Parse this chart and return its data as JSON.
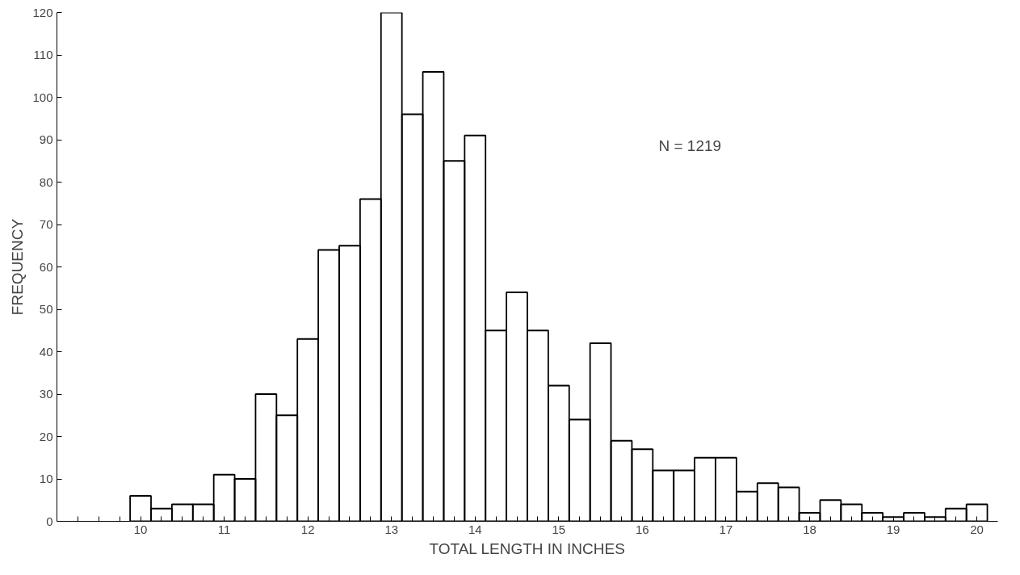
{
  "chart_data": {
    "type": "histogram",
    "xlabel": "TOTAL LENGTH IN INCHES",
    "ylabel": "FREQUENCY",
    "annotations": [
      "N = 1219"
    ],
    "bins": [
      9.875,
      10.125,
      10.375,
      10.625,
      10.875,
      11.125,
      11.375,
      11.625,
      11.875,
      12.125,
      12.375,
      12.625,
      12.875,
      13.125,
      13.375,
      13.625,
      13.875,
      14.125,
      14.375,
      14.625,
      14.875,
      15.125,
      15.375,
      15.625,
      15.875,
      16.125,
      16.375,
      16.625,
      16.875,
      17.125,
      17.375,
      17.625,
      17.875,
      18.125,
      18.375,
      18.625,
      18.875,
      19.125,
      19.375,
      19.625,
      19.875,
      20.125
    ],
    "values": [
      6,
      3,
      4,
      4,
      11,
      10,
      30,
      25,
      43,
      64,
      65,
      76,
      120,
      96,
      106,
      85,
      91,
      45,
      54,
      45,
      32,
      24,
      42,
      19,
      17,
      12,
      12,
      15,
      15,
      7,
      9,
      8,
      2,
      5,
      4,
      2,
      1,
      2,
      1,
      3,
      4
    ],
    "color": "#000000",
    "xlim": [
      9.0,
      20.25
    ],
    "xticks": [
      {
        "value": 9.25,
        "label": null
      },
      {
        "value": 9.5,
        "label": null
      },
      {
        "value": 9.75,
        "label": null
      },
      10,
      {
        "value": 10.25,
        "label": null
      },
      {
        "value": 10.5,
        "label": null
      },
      {
        "value": 10.75,
        "label": null
      },
      11,
      {
        "value": 11.25,
        "label": null
      },
      {
        "value": 11.5,
        "label": null
      },
      {
        "value": 11.75,
        "label": null
      },
      12,
      {
        "value": 12.25,
        "label": null
      },
      {
        "value": 12.5,
        "label": null
      },
      {
        "value": 12.75,
        "label": null
      },
      13,
      {
        "value": 13.25,
        "label": null
      },
      {
        "value": 13.5,
        "label": null
      },
      {
        "value": 13.75,
        "label": null
      },
      14,
      {
        "value": 14.25,
        "label": null
      },
      {
        "value": 14.5,
        "label": null
      },
      {
        "value": 14.75,
        "label": null
      },
      15,
      {
        "value": 15.25,
        "label": null
      },
      {
        "value": 15.5,
        "label": null
      },
      {
        "value": 15.75,
        "label": null
      },
      16,
      {
        "value": 16.25,
        "label": null
      },
      {
        "value": 16.5,
        "label": null
      },
      {
        "value": 16.75,
        "label": null
      },
      17,
      {
        "value": 17.25,
        "label": null
      },
      {
        "value": 17.5,
        "label": null
      },
      {
        "value": 17.75,
        "label": null
      },
      18,
      {
        "value": 18.25,
        "label": null
      },
      {
        "value": 18.5,
        "label": null
      },
      {
        "value": 18.75,
        "label": null
      },
      19,
      {
        "value": 19.25,
        "label": null
      },
      {
        "value": 19.5,
        "label": null
      },
      {
        "value": 19.75,
        "label": null
      },
      20
    ],
    "ylim": [
      0,
      120
    ],
    "yticks": [
      0,
      10,
      20,
      30,
      40,
      50,
      60,
      70,
      80,
      90,
      100,
      110,
      120
    ],
    "grid": false
  }
}
